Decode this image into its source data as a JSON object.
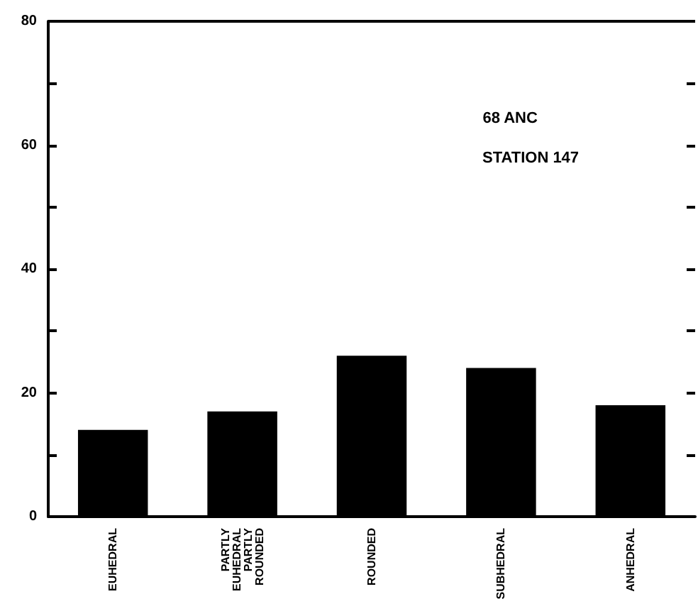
{
  "chart_data": {
    "type": "bar",
    "categories": [
      "EUHEDRAL",
      "PARTLY EUHEDRAL PARTLY ROUNDED",
      "ROUNDED",
      "SUBHEDRAL",
      "ANHEDRAL"
    ],
    "values": [
      14,
      17,
      26,
      24,
      18
    ],
    "color": "#000000",
    "ylim": [
      0,
      80
    ],
    "yticks": [
      0,
      {
        "value": 10,
        "label": null
      },
      20,
      {
        "value": 30,
        "label": null
      },
      40,
      {
        "value": 50,
        "label": null
      },
      60,
      {
        "value": 70,
        "label": null
      },
      80
    ],
    "annotations": [
      "68 ANC",
      "STATION 147"
    ],
    "grid": false
  }
}
